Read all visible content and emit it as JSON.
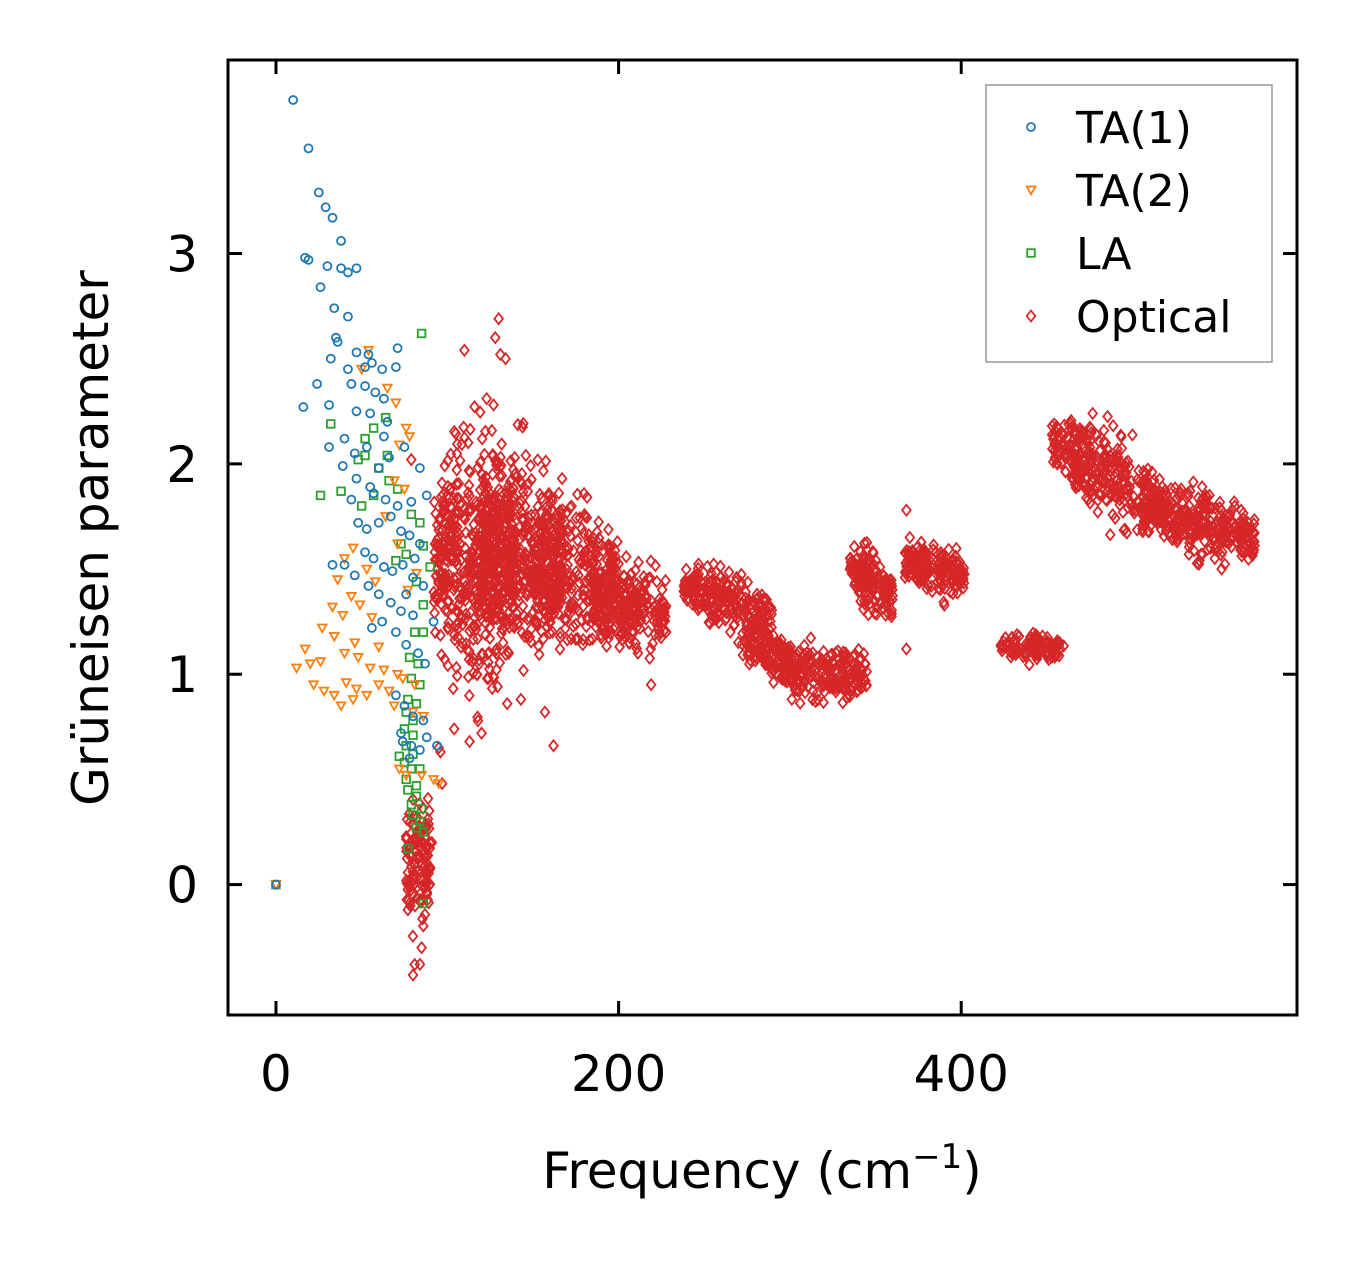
{
  "chart_data": {
    "type": "scatter",
    "title": "",
    "xlabel": "Frequency (cm",
    "xlabel_sup": "−1",
    "xlabel_close": ")",
    "ylabel": "Grüneisen parameter",
    "xlim": [
      -28,
      596
    ],
    "ylim": [
      -0.62,
      3.92
    ],
    "xticks": [
      0,
      200,
      400
    ],
    "xtick_labels": [
      "0",
      "200",
      "400"
    ],
    "yticks": [
      0,
      1,
      2,
      3
    ],
    "ytick_labels": [
      "0",
      "1",
      "2",
      "3"
    ],
    "grid": false,
    "legend_position": "top-right",
    "series": [
      {
        "name": "TA(1)",
        "marker": "circle",
        "color": "#1f77b4",
        "points": [
          [
            0,
            0
          ],
          [
            10,
            3.73
          ],
          [
            19,
            3.5
          ],
          [
            25,
            3.29
          ],
          [
            29,
            3.22
          ],
          [
            33,
            3.17
          ],
          [
            17,
            2.98
          ],
          [
            19,
            2.97
          ],
          [
            38,
            3.06
          ],
          [
            38,
            2.93
          ],
          [
            42,
            2.91
          ],
          [
            47,
            2.93
          ],
          [
            30,
            2.94
          ],
          [
            26,
            2.84
          ],
          [
            34,
            2.74
          ],
          [
            42,
            2.7
          ],
          [
            35,
            2.6
          ],
          [
            36,
            2.58
          ],
          [
            47,
            2.53
          ],
          [
            54,
            2.52
          ],
          [
            56,
            2.48
          ],
          [
            52,
            2.46
          ],
          [
            62,
            2.45
          ],
          [
            70,
            2.46
          ],
          [
            71,
            2.55
          ],
          [
            32,
            2.5
          ],
          [
            42,
            2.45
          ],
          [
            44,
            2.38
          ],
          [
            52,
            2.37
          ],
          [
            58,
            2.34
          ],
          [
            63,
            2.31
          ],
          [
            16,
            2.27
          ],
          [
            24,
            2.38
          ],
          [
            31,
            2.28
          ],
          [
            47,
            2.25
          ],
          [
            55,
            2.24
          ],
          [
            65,
            2.2
          ],
          [
            40,
            2.12
          ],
          [
            46,
            2.05
          ],
          [
            53,
            2.08
          ],
          [
            63,
            2.13
          ],
          [
            31,
            2.08
          ],
          [
            60,
            1.98
          ],
          [
            66,
            2.03
          ],
          [
            75,
            2.08
          ],
          [
            84,
            1.98
          ],
          [
            39,
            1.99
          ],
          [
            47,
            1.93
          ],
          [
            55,
            1.89
          ],
          [
            44,
            1.83
          ],
          [
            57,
            1.86
          ],
          [
            64,
            1.83
          ],
          [
            71,
            1.8
          ],
          [
            79,
            1.82
          ],
          [
            88,
            1.85
          ],
          [
            48,
            1.72
          ],
          [
            53,
            1.69
          ],
          [
            60,
            1.72
          ],
          [
            67,
            1.75
          ],
          [
            73,
            1.68
          ],
          [
            78,
            1.66
          ],
          [
            84,
            1.62
          ],
          [
            52,
            1.58
          ],
          [
            57,
            1.55
          ],
          [
            63,
            1.51
          ],
          [
            68,
            1.49
          ],
          [
            74,
            1.52
          ],
          [
            81,
            1.55
          ],
          [
            33,
            1.52
          ],
          [
            40,
            1.52
          ],
          [
            46,
            1.47
          ],
          [
            54,
            1.42
          ],
          [
            60,
            1.38
          ],
          [
            67,
            1.34
          ],
          [
            73,
            1.3
          ],
          [
            80,
            1.28
          ],
          [
            92,
            1.25
          ],
          [
            56,
            1.22
          ],
          [
            62,
            1.25
          ],
          [
            70,
            1.2
          ],
          [
            76,
            1.14
          ],
          [
            83,
            1.1
          ],
          [
            87,
            1.05
          ],
          [
            70,
            0.9
          ],
          [
            75,
            0.85
          ],
          [
            80,
            0.8
          ],
          [
            86,
            0.78
          ],
          [
            74,
            0.68
          ],
          [
            79,
            0.66
          ],
          [
            84,
            0.64
          ],
          [
            88,
            0.7
          ],
          [
            94,
            0.66
          ],
          [
            73,
            0.72
          ],
          [
            78,
            0.6
          ],
          [
            76,
            1.38
          ],
          [
            80,
            1.46
          ],
          [
            86,
            1.42
          ]
        ]
      },
      {
        "name": "TA(2)",
        "marker": "triangle-down",
        "color": "#ff7f0e",
        "points": [
          [
            0,
            0
          ],
          [
            54,
            2.54
          ],
          [
            50,
            2.45
          ],
          [
            65,
            2.36
          ],
          [
            70,
            2.29
          ],
          [
            76,
            2.17
          ],
          [
            72,
            2.09
          ],
          [
            78,
            2.13
          ],
          [
            69,
            1.92
          ],
          [
            75,
            1.88
          ],
          [
            64,
            1.75
          ],
          [
            71,
            1.62
          ],
          [
            45,
            1.6
          ],
          [
            40,
            1.55
          ],
          [
            53,
            1.5
          ],
          [
            36,
            1.45
          ],
          [
            58,
            1.44
          ],
          [
            44,
            1.37
          ],
          [
            49,
            1.33
          ],
          [
            33,
            1.32
          ],
          [
            39,
            1.28
          ],
          [
            56,
            1.27
          ],
          [
            27,
            1.22
          ],
          [
            34,
            1.18
          ],
          [
            46,
            1.15
          ],
          [
            60,
            1.13
          ],
          [
            12,
            1.03
          ],
          [
            20,
            1.05
          ],
          [
            26,
            1.06
          ],
          [
            17,
            1.12
          ],
          [
            40,
            1.1
          ],
          [
            48,
            1.08
          ],
          [
            55,
            1.03
          ],
          [
            63,
            1.02
          ],
          [
            71,
            1.0
          ],
          [
            22,
            0.95
          ],
          [
            28,
            0.92
          ],
          [
            34,
            0.9
          ],
          [
            41,
            0.96
          ],
          [
            47,
            0.93
          ],
          [
            53,
            0.9
          ],
          [
            60,
            0.95
          ],
          [
            66,
            0.92
          ],
          [
            74,
            0.98
          ],
          [
            81,
            0.95
          ],
          [
            38,
            0.85
          ],
          [
            45,
            0.88
          ],
          [
            69,
            0.85
          ],
          [
            80,
            0.82
          ],
          [
            86,
            0.8
          ],
          [
            72,
            0.55
          ],
          [
            76,
            0.52
          ],
          [
            85,
            0.52
          ],
          [
            92,
            0.5
          ],
          [
            95,
            0.48
          ],
          [
            77,
            1.4
          ],
          [
            82,
            1.48
          ]
        ]
      },
      {
        "name": "LA",
        "marker": "square",
        "color": "#2ca02c",
        "points": [
          [
            0,
            0
          ],
          [
            85,
            2.62
          ],
          [
            57,
            2.17
          ],
          [
            64,
            2.22
          ],
          [
            52,
            2.12
          ],
          [
            32,
            2.19
          ],
          [
            48,
            2.02
          ],
          [
            52,
            2.04
          ],
          [
            65,
            2.04
          ],
          [
            60,
            1.98
          ],
          [
            26,
            1.85
          ],
          [
            38,
            1.87
          ],
          [
            50,
            1.8
          ],
          [
            57,
            1.85
          ],
          [
            66,
            1.92
          ],
          [
            71,
            1.88
          ],
          [
            79,
            1.76
          ],
          [
            84,
            1.72
          ],
          [
            73,
            1.62
          ],
          [
            70,
            1.54
          ],
          [
            76,
            1.57
          ],
          [
            86,
            1.61
          ],
          [
            90,
            1.51
          ],
          [
            82,
            1.44
          ],
          [
            86,
            1.33
          ],
          [
            81,
            1.2
          ],
          [
            86,
            1.2
          ],
          [
            78,
            1.08
          ],
          [
            83,
            1.05
          ],
          [
            79,
            0.98
          ],
          [
            84,
            0.95
          ],
          [
            77,
            0.88
          ],
          [
            82,
            0.86
          ],
          [
            76,
            0.82
          ],
          [
            80,
            0.78
          ],
          [
            75,
            0.74
          ],
          [
            80,
            0.71
          ],
          [
            76,
            0.66
          ],
          [
            80,
            0.62
          ],
          [
            72,
            0.61
          ],
          [
            75,
            0.58
          ],
          [
            79,
            0.55
          ],
          [
            84,
            0.55
          ],
          [
            76,
            0.5
          ],
          [
            82,
            0.47
          ],
          [
            77,
            0.45
          ],
          [
            82,
            0.42
          ],
          [
            79,
            0.38
          ],
          [
            85,
            0.36
          ],
          [
            80,
            0.33
          ],
          [
            84,
            0.3
          ],
          [
            82,
            0.27
          ],
          [
            86,
            0.25
          ],
          [
            77,
            0.17
          ],
          [
            86,
            -0.09
          ]
        ]
      },
      {
        "name": "Optical",
        "marker": "diamond",
        "color": "#d62728",
        "blobs": [
          {
            "x": [
              92,
              140
            ],
            "y": [
              0.62,
              2.42
            ],
            "center_y": 1.55,
            "n": 520
          },
          {
            "x": [
              118,
              168
            ],
            "y": [
              0.72,
              2.2
            ],
            "center_y": 1.55,
            "n": 440
          },
          {
            "x": [
              150,
              200
            ],
            "y": [
              0.85,
              1.95
            ],
            "center_y": 1.45,
            "n": 320
          },
          {
            "x": [
              185,
              215
            ],
            "y": [
              1.05,
              1.75
            ],
            "center_y": 1.35,
            "n": 130
          },
          {
            "x": [
              204,
              228
            ],
            "y": [
              0.98,
              1.6
            ],
            "center_y": 1.3,
            "n": 100
          },
          {
            "x": [
              238,
              290
            ],
            "y": [
              1.12,
              1.55
            ],
            "center_y": 1.35,
            "n": 230,
            "trend": -0.35
          },
          {
            "x": [
              272,
              305
            ],
            "y": [
              0.95,
              1.3
            ],
            "center_y": 1.1,
            "n": 130,
            "trend": -0.3
          },
          {
            "x": [
              295,
              345
            ],
            "y": [
              0.78,
              1.2
            ],
            "center_y": 1.0,
            "n": 220
          },
          {
            "x": [
              335,
              360
            ],
            "y": [
              1.2,
              1.68
            ],
            "center_y": 1.44,
            "n": 140,
            "trend": -0.3
          },
          {
            "x": [
              367,
              402
            ],
            "y": [
              1.32,
              1.72
            ],
            "center_y": 1.5,
            "n": 170,
            "trend": -0.15
          },
          {
            "x": [
              423,
              460
            ],
            "y": [
              1.03,
              1.24
            ],
            "center_y": 1.13,
            "n": 120
          },
          {
            "x": [
              453,
              518
            ],
            "y": [
              1.62,
              2.27
            ],
            "center_y": 1.95,
            "n": 320,
            "trend": -0.45
          },
          {
            "x": [
              505,
              572
            ],
            "y": [
              1.5,
              1.98
            ],
            "center_y": 1.72,
            "n": 320,
            "trend": -0.3
          },
          {
            "x": [
              76,
              90
            ],
            "y": [
              -0.45,
              0.6
            ],
            "center_y": 0.1,
            "n": 120
          }
        ],
        "points": [
          [
            130,
            2.69
          ],
          [
            128,
            2.6
          ],
          [
            131,
            2.52
          ],
          [
            134,
            2.5
          ],
          [
            110,
            2.54
          ],
          [
            123,
            2.31
          ],
          [
            127,
            2.28
          ],
          [
            368,
            1.78
          ],
          [
            370,
            1.65
          ],
          [
            320,
            1.05
          ],
          [
            162,
            0.66
          ],
          [
            143,
            0.88
          ],
          [
            157,
            0.82
          ],
          [
            135,
            0.86
          ],
          [
            104,
            0.74
          ],
          [
            113,
            0.68
          ],
          [
            120,
            0.72
          ],
          [
            95,
            0.65
          ],
          [
            97,
            0.48
          ],
          [
            96,
            0.63
          ],
          [
            81,
            -0.38
          ],
          [
            80,
            -0.43
          ],
          [
            85,
            -0.3
          ],
          [
            77,
            -0.12
          ],
          [
            88,
            -0.04
          ],
          [
            86,
            0.14
          ],
          [
            83,
            0.2
          ],
          [
            91,
            0.2
          ],
          [
            79,
            2.02
          ],
          [
            167,
            1.93
          ],
          [
            219,
            0.95
          ],
          [
            368,
            1.12
          ],
          [
            540,
            1.57
          ],
          [
            548,
            1.55
          ]
        ]
      }
    ]
  }
}
